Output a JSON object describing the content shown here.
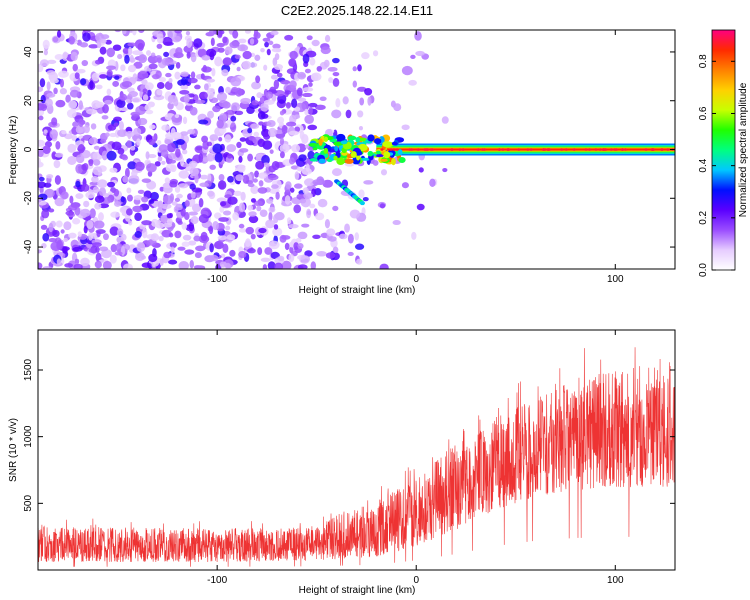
{
  "page": {
    "title": "C2E2.2025.148.22.14.E11"
  },
  "chart_data": [
    {
      "type": "heatmap",
      "title": "C2E2.2025.148.22.14.E11",
      "xlabel": "Height of straight line (km)",
      "ylabel": "Frequency (Hz)",
      "xlim": [
        -190,
        130
      ],
      "ylim": [
        -49,
        49
      ],
      "x_ticks": [
        -100,
        0,
        100
      ],
      "x_tick_labels": [
        "-100",
        "0",
        "100"
      ],
      "y_ticks": [
        -40,
        -20,
        0,
        20,
        40
      ],
      "y_tick_labels": [
        "-40",
        "-20",
        "0",
        "20",
        "40"
      ],
      "grid": false,
      "colorbar": {
        "label": "Normalized spectral amplitude",
        "range": [
          0,
          0.92
        ],
        "ticks": [
          0.0,
          0.2,
          0.4,
          0.6,
          0.8
        ],
        "tick_labels": [
          "0.0",
          "0.2",
          "0.4",
          "0.6",
          "0.8"
        ],
        "colors": [
          "#ffffff",
          "#e6ccff",
          "#9a4dff",
          "#5a00ff",
          "#0010ff",
          "#00c8ff",
          "#00ff80",
          "#20ff00",
          "#c8ff00",
          "#ffd000",
          "#ff8000",
          "#ff2a00",
          "#ff0080"
        ]
      },
      "features": {
        "noise_region_x": [
          -190,
          -52
        ],
        "noise_amplitude": 0.12,
        "signal_line_x": [
          -52,
          130
        ],
        "signal_line_freq": 0,
        "signal_amplitude": 0.85,
        "branch_x": [
          -40,
          -27
        ],
        "branch_freq": [
          -13,
          -22
        ]
      }
    },
    {
      "type": "line",
      "xlabel": "Height of straight line (km)",
      "ylabel": "SNR (10 * v/v)",
      "xlim": [
        -190,
        130
      ],
      "ylim": [
        0,
        1800
      ],
      "x_ticks": [
        -100,
        0,
        100
      ],
      "x_tick_labels": [
        "-100",
        "0",
        "100"
      ],
      "y_ticks": [
        500,
        1000,
        1500
      ],
      "y_tick_labels": [
        "500",
        "1000",
        "1500"
      ],
      "grid": false,
      "series": [
        {
          "color": "#ee3333",
          "envelope": [
            {
              "x": -190,
              "low": 60,
              "high": 330
            },
            {
              "x": -150,
              "low": 60,
              "high": 320
            },
            {
              "x": -100,
              "low": 60,
              "high": 310
            },
            {
              "x": -50,
              "low": 70,
              "high": 320
            },
            {
              "x": -40,
              "low": 80,
              "high": 420
            },
            {
              "x": -20,
              "low": 100,
              "high": 520
            },
            {
              "x": 0,
              "low": 180,
              "high": 700
            },
            {
              "x": 20,
              "low": 300,
              "high": 950
            },
            {
              "x": 40,
              "low": 450,
              "high": 1150
            },
            {
              "x": 60,
              "low": 550,
              "high": 1300
            },
            {
              "x": 80,
              "low": 600,
              "high": 1450
            },
            {
              "x": 100,
              "low": 620,
              "high": 1500
            },
            {
              "x": 120,
              "low": 620,
              "high": 1550
            },
            {
              "x": 130,
              "low": 620,
              "high": 1550
            }
          ]
        }
      ]
    }
  ]
}
